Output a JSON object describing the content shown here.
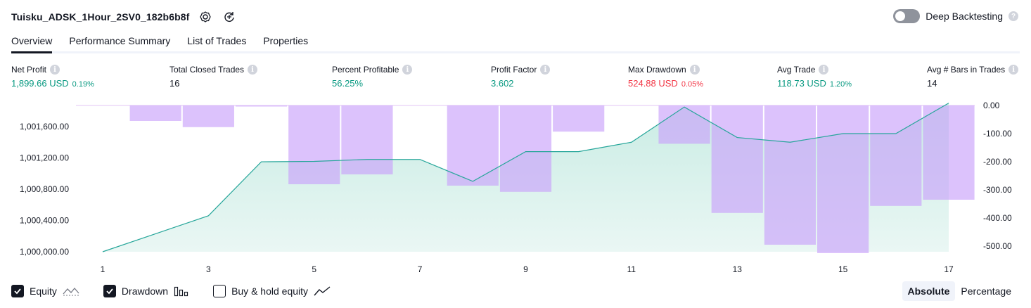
{
  "header": {
    "title": "Tuisku_ADSK_1Hour_2SV0_182b6b8f",
    "deep_label": "Deep Backtesting",
    "deep_enabled": false,
    "help_mark": "?"
  },
  "tabs": [
    {
      "label": "Overview",
      "active": true
    },
    {
      "label": "Performance Summary",
      "active": false
    },
    {
      "label": "List of Trades",
      "active": false
    },
    {
      "label": "Properties",
      "active": false
    }
  ],
  "info_mark": "i",
  "stats": {
    "net_profit": {
      "label": "Net Profit",
      "value": "1,899.66 USD",
      "pct": "0.19%"
    },
    "total_closed_trades": {
      "label": "Total Closed Trades",
      "value": "16"
    },
    "percent_profitable": {
      "label": "Percent Profitable",
      "value": "56.25%"
    },
    "profit_factor": {
      "label": "Profit Factor",
      "value": "3.602"
    },
    "max_drawdown": {
      "label": "Max Drawdown",
      "value": "524.88 USD",
      "pct": "0.05%"
    },
    "avg_trade": {
      "label": "Avg Trade",
      "value": "118.73 USD",
      "pct": "1.20%"
    },
    "avg_bars": {
      "label": "Avg # Bars in Trades",
      "value": "14"
    }
  },
  "chart_data": {
    "type": "area",
    "x": [
      1,
      2,
      3,
      4,
      5,
      6,
      7,
      8,
      9,
      10,
      11,
      12,
      13,
      14,
      15,
      16,
      17
    ],
    "xticks": [
      "1",
      "3",
      "5",
      "7",
      "9",
      "11",
      "13",
      "15",
      "17"
    ],
    "series": [
      {
        "name": "Equity",
        "axis": "left",
        "values": [
          1000000,
          1000230,
          1000460,
          1001150,
          1001155,
          1001180,
          1001180,
          1000900,
          1001280,
          1001280,
          1001400,
          1001850,
          1001460,
          1001400,
          1001510,
          1001510,
          1001900
        ]
      },
      {
        "name": "Drawdown",
        "axis": "right",
        "values": [
          0,
          -55,
          -77,
          -2,
          -280,
          -245,
          0,
          -285,
          -307,
          -93,
          0,
          -136,
          -382,
          -495,
          -524.88,
          -357,
          -335
        ]
      }
    ],
    "left_axis": {
      "ticks": [
        "1,000,000.00",
        "1,000,400.00",
        "1,000,800.00",
        "1,001,200.00",
        "1,001,600.00"
      ],
      "range": [
        1000000,
        1001900
      ]
    },
    "right_axis": {
      "ticks": [
        "0.00",
        "-100.00",
        "-200.00",
        "-300.00",
        "-400.00",
        "-500.00"
      ],
      "range": [
        -500,
        0
      ]
    },
    "colors": {
      "equity_line": "#26a69a",
      "equity_fill_top": "#c9ece4",
      "equity_fill_bottom": "#eaf7f4",
      "drawdown": "#c9a2fa",
      "baseline": "#e3c6f5"
    }
  },
  "legend": [
    {
      "label": "Equity",
      "checked": true
    },
    {
      "label": "Drawdown",
      "checked": true
    },
    {
      "label": "Buy & hold equity",
      "checked": false
    }
  ],
  "mode": {
    "absolute": "Absolute",
    "percentage": "Percentage",
    "selected": "Absolute"
  }
}
